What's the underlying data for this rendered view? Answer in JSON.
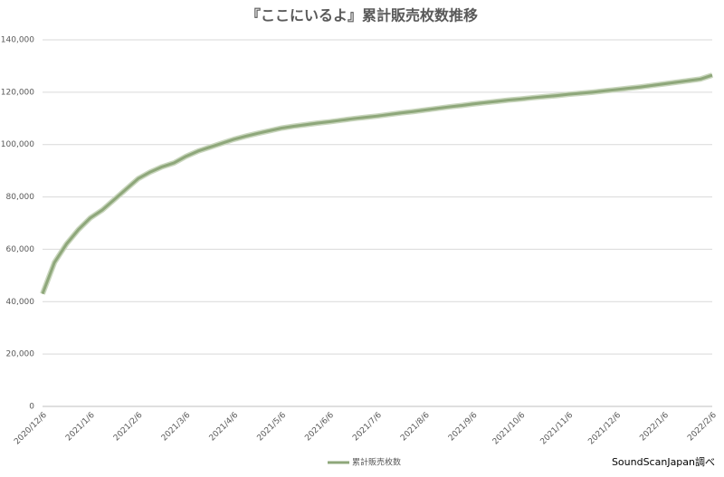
{
  "chart_data": {
    "type": "line",
    "title": "『ここにいるよ』累計販売枚数推移",
    "categories": [
      "2020/12/6",
      null,
      null,
      null,
      "2021/1/6",
      null,
      null,
      null,
      "2021/2/6",
      null,
      null,
      null,
      "2021/3/6",
      null,
      null,
      null,
      "2021/4/6",
      null,
      null,
      null,
      "2021/5/6",
      null,
      null,
      null,
      "2021/6/6",
      null,
      null,
      null,
      "2021/7/6",
      null,
      null,
      null,
      "2021/8/6",
      null,
      null,
      null,
      "2021/9/6",
      null,
      null,
      null,
      "2021/10/6",
      null,
      null,
      null,
      "2021/11/6",
      null,
      null,
      null,
      "2021/12/6",
      null,
      null,
      null,
      "2022/1/6",
      null,
      null,
      null,
      "2022/2/6"
    ],
    "series": [
      {
        "name": "累計販売枚数",
        "color": "#8ea77a",
        "values": [
          43000,
          55000,
          62000,
          67500,
          72000,
          75000,
          79000,
          83000,
          87000,
          89500,
          91500,
          93000,
          95500,
          97500,
          99000,
          100500,
          102000,
          103200,
          104300,
          105300,
          106300,
          107000,
          107600,
          108200,
          108700,
          109300,
          109900,
          110400,
          110900,
          111500,
          112100,
          112600,
          113200,
          113800,
          114400,
          114900,
          115500,
          116000,
          116500,
          117000,
          117400,
          117900,
          118300,
          118700,
          119200,
          119600,
          120000,
          120500,
          121000,
          121500,
          122000,
          122600,
          123200,
          123800,
          124400,
          125000,
          126500
        ]
      }
    ],
    "ylim": [
      0,
      140000
    ],
    "yticks": [
      0,
      {
        "value": 20000,
        "label": "20,000"
      },
      {
        "value": 40000,
        "label": "40,000"
      },
      {
        "value": 60000,
        "label": "60,000"
      },
      {
        "value": 80000,
        "label": "80,000"
      },
      {
        "value": 100000,
        "label": "100,000"
      },
      {
        "value": 120000,
        "label": "120,000"
      },
      {
        "value": 140000,
        "label": "140,000"
      }
    ],
    "grid": true,
    "legend": "bottom",
    "source": "SoundScanJapan調べ"
  }
}
